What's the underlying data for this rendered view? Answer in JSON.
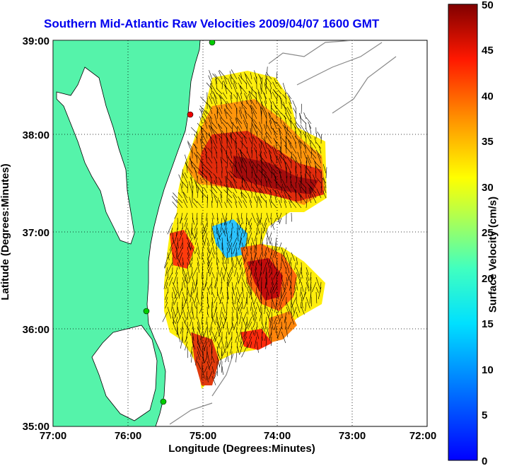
{
  "title": "Southern Mid-Atlantic Raw Velocities 2009/04/07 1600 GMT",
  "xlabel": "Longitude (Degrees:Minutes)",
  "ylabel": "Latitude (Degrees:Minutes)",
  "x_ticks": [
    "77:00",
    "76:00",
    "75:00",
    "74:00",
    "73:00",
    "72:00"
  ],
  "y_ticks": [
    "39:00",
    "38:00",
    "37:00",
    "36:00",
    "35:00"
  ],
  "colorbar": {
    "label": "Surface Velocity (cm/s)",
    "ticks": [
      "50",
      "45",
      "40",
      "35",
      "30",
      "25",
      "20",
      "15",
      "10",
      "5",
      "0"
    ],
    "range": [
      0,
      50
    ]
  },
  "colors": {
    "land": "#55f3aa",
    "ocean": "#ffffff",
    "title": "#0000ee",
    "grid": "#000000"
  },
  "map_extent": {
    "lon": [
      -77,
      -72
    ],
    "lat": [
      35,
      39
    ]
  }
}
